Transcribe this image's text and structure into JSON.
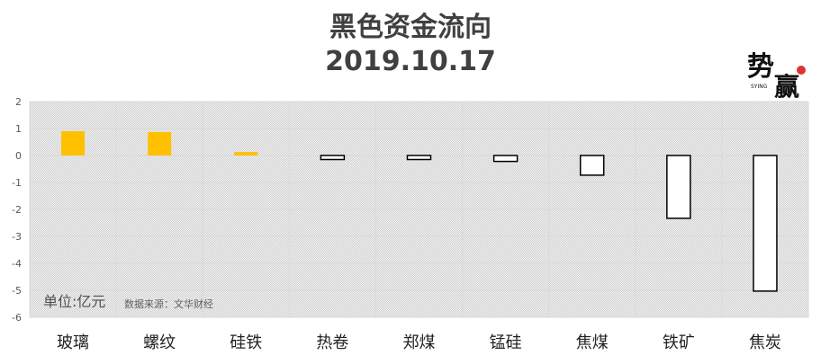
{
  "title_line1": "黑色资金流向",
  "title_line2": "2019.10.17",
  "logo_text": "势赢 SYING",
  "unit_label": "单位:亿元",
  "source_label": "数据来源：文华财经",
  "chart_data": {
    "type": "bar",
    "title": "黑色资金流向 2019.10.17",
    "categories": [
      "玻璃",
      "螺纹",
      "硅铁",
      "热卷",
      "郑煤",
      "锰硅",
      "焦煤",
      "铁矿",
      "焦炭"
    ],
    "values": [
      0.9,
      0.87,
      0.13,
      -0.15,
      -0.15,
      -0.22,
      -0.73,
      -2.33,
      -5.03
    ],
    "ylim": [
      -6,
      2
    ],
    "yticks": [
      2,
      1,
      0,
      -1,
      -2,
      -3,
      -4,
      -5,
      -6
    ],
    "grid": true,
    "colors": {
      "positive": "#FFC000",
      "negative": "#FFFFFF",
      "negative_border": "#000000"
    }
  }
}
